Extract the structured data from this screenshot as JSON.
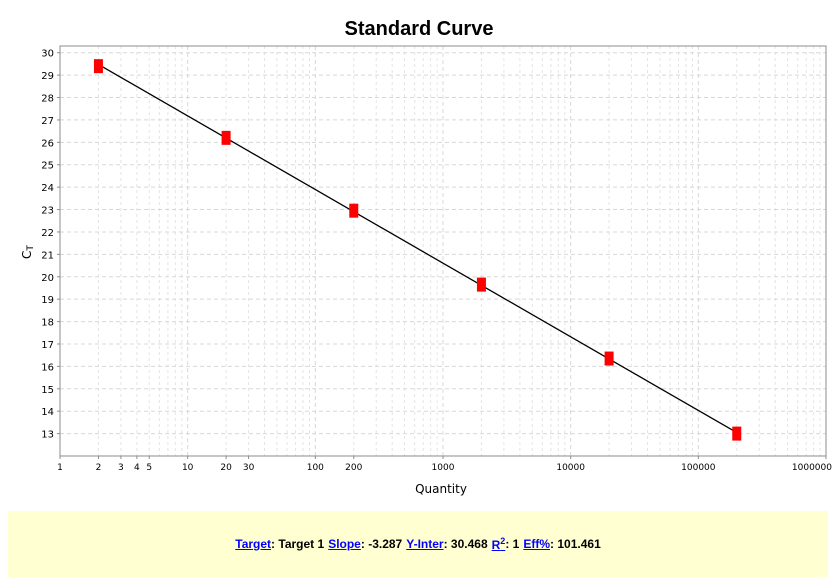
{
  "chart_data": {
    "type": "scatter",
    "title": "Standard Curve",
    "xlabel": "Quantity",
    "ylabel": "C",
    "ylabel_subscript": "T",
    "x_scale": "log",
    "xlim": [
      1,
      1000000
    ],
    "ylim": [
      12,
      30.3
    ],
    "x_tick_labels": [
      "1",
      "2",
      "3",
      "4",
      "5",
      "10",
      "20",
      "30",
      "100",
      "200",
      "1000",
      "10000",
      "100000",
      "1000000"
    ],
    "x_tick_values": [
      1,
      2,
      3,
      4,
      5,
      10,
      20,
      30,
      100,
      200,
      1000,
      10000,
      100000,
      1000000
    ],
    "y_ticks": [
      13,
      14,
      15,
      16,
      17,
      18,
      19,
      20,
      21,
      22,
      23,
      24,
      25,
      26,
      27,
      28,
      29,
      30
    ],
    "grid": true,
    "points": [
      {
        "x": 2,
        "y": 29.4
      },
      {
        "x": 20,
        "y": 26.2
      },
      {
        "x": 200,
        "y": 22.95
      },
      {
        "x": 2000,
        "y": 19.65
      },
      {
        "x": 20000,
        "y": 16.35
      },
      {
        "x": 200000,
        "y": 13.0
      }
    ],
    "fit_line": {
      "slope": -3.287,
      "intercept": 30.468,
      "x_range": [
        2,
        200000
      ]
    },
    "colors": {
      "marker": "#ff0000",
      "line": "#000000"
    }
  },
  "summary": {
    "target_label": "Target",
    "target_value": "Target 1",
    "slope_label": "Slope",
    "slope_value": "-3.287",
    "yinter_label": "Y-Inter",
    "yinter_value": "30.468",
    "r2_label": "R",
    "r2_sup": "2",
    "r2_value": "1",
    "eff_label": "Eff%",
    "eff_value": "101.461"
  }
}
